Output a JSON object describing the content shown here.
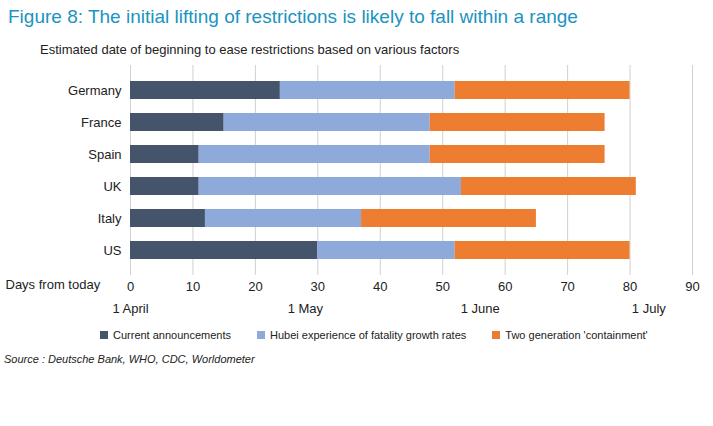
{
  "chart_data": {
    "type": "bar",
    "orientation": "horizontal",
    "stacked": true,
    "title": "Figure 8: The initial lifting of restrictions is likely to fall within a range",
    "subtitle": "Estimated date of beginning to ease restrictions based on various factors",
    "x_label": "Days from today",
    "caption": "Source : Deutsche Bank, WHO, CDC, Worldometer",
    "categories": [
      "Germany",
      "France",
      "Spain",
      "UK",
      "Italy",
      "US"
    ],
    "series": [
      {
        "name": "Current announcements",
        "color": "#44546a",
        "values": [
          24,
          15,
          11,
          11,
          12,
          30
        ]
      },
      {
        "name": "Hubei experience of fatality growth rates",
        "color": "#8eaadb",
        "values": [
          28,
          33,
          37,
          42,
          25,
          22
        ]
      },
      {
        "name": "Two generation 'containment'",
        "color": "#ed7d31",
        "values": [
          28,
          28,
          28,
          28,
          28,
          28
        ]
      }
    ],
    "xlim": [
      0,
      90
    ],
    "xticks": [
      0,
      10,
      20,
      30,
      40,
      50,
      60,
      70,
      80,
      90
    ],
    "x2lim": [
      0,
      90
    ],
    "x2ticks": [
      {
        "value": 0,
        "label": "1 April"
      },
      {
        "value": 28,
        "label": "1 May"
      },
      {
        "value": 56,
        "label": "1 June"
      },
      {
        "value": 83,
        "label": "1 July"
      }
    ],
    "grid": true,
    "legend": "bottom"
  }
}
